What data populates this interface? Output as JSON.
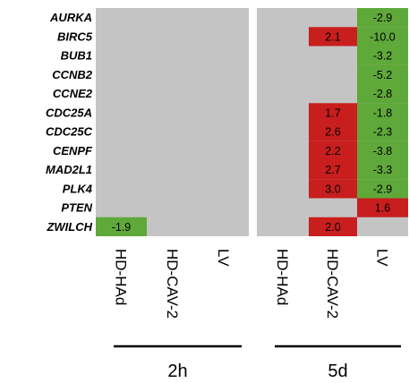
{
  "chart_data": {
    "type": "heatmap",
    "genes": [
      "AURKA",
      "BIRC5",
      "BUB1",
      "CCNB2",
      "CCNE2",
      "CDC25A",
      "CDC25C",
      "CENPF",
      "MAD2L1",
      "PLK4",
      "PTEN",
      "ZWILCH"
    ],
    "columns": [
      "HD-HAd",
      "HD-CAV-2",
      "LV",
      "HD-HAd",
      "HD-CAV-2",
      "LV"
    ],
    "groups": [
      {
        "label": "2h",
        "columns": [
          0,
          1,
          2
        ]
      },
      {
        "label": "5d",
        "columns": [
          3,
          4,
          5
        ]
      }
    ],
    "values": [
      [
        null,
        null,
        null,
        null,
        null,
        -2.9
      ],
      [
        null,
        null,
        null,
        null,
        2.1,
        -10.0
      ],
      [
        null,
        null,
        null,
        null,
        null,
        -3.2
      ],
      [
        null,
        null,
        null,
        null,
        null,
        -5.2
      ],
      [
        null,
        null,
        null,
        null,
        null,
        -2.8
      ],
      [
        null,
        null,
        null,
        null,
        1.7,
        -1.8
      ],
      [
        null,
        null,
        null,
        null,
        2.6,
        -2.3
      ],
      [
        null,
        null,
        null,
        null,
        2.2,
        -3.8
      ],
      [
        null,
        null,
        null,
        null,
        2.7,
        -3.3
      ],
      [
        null,
        null,
        null,
        null,
        3.0,
        -2.9
      ],
      [
        null,
        null,
        null,
        null,
        null,
        1.6
      ],
      [
        -1.9,
        null,
        null,
        null,
        2.0,
        null
      ]
    ],
    "value_labels": [
      [
        null,
        null,
        null,
        null,
        null,
        "-2.9"
      ],
      [
        null,
        null,
        null,
        null,
        "2.1",
        "-10.0"
      ],
      [
        null,
        null,
        null,
        null,
        null,
        "-3.2"
      ],
      [
        null,
        null,
        null,
        null,
        null,
        "-5.2"
      ],
      [
        null,
        null,
        null,
        null,
        null,
        "-2.8"
      ],
      [
        null,
        null,
        null,
        null,
        "1.7",
        "-1.8"
      ],
      [
        null,
        null,
        null,
        null,
        "2.6",
        "-2.3"
      ],
      [
        null,
        null,
        null,
        null,
        "2.2",
        "-3.8"
      ],
      [
        null,
        null,
        null,
        null,
        "2.7",
        "-3.3"
      ],
      [
        null,
        null,
        null,
        null,
        "3.0",
        "-2.9"
      ],
      [
        null,
        null,
        null,
        null,
        null,
        "1.6"
      ],
      [
        "-1.9",
        null,
        null,
        null,
        "2.0",
        null
      ]
    ],
    "colors": {
      "up": "#c81e1e",
      "down": "#5fa83a",
      "none": "#c4c4c4",
      "separator": "#ffffff"
    },
    "legend": "none",
    "grid": false
  }
}
